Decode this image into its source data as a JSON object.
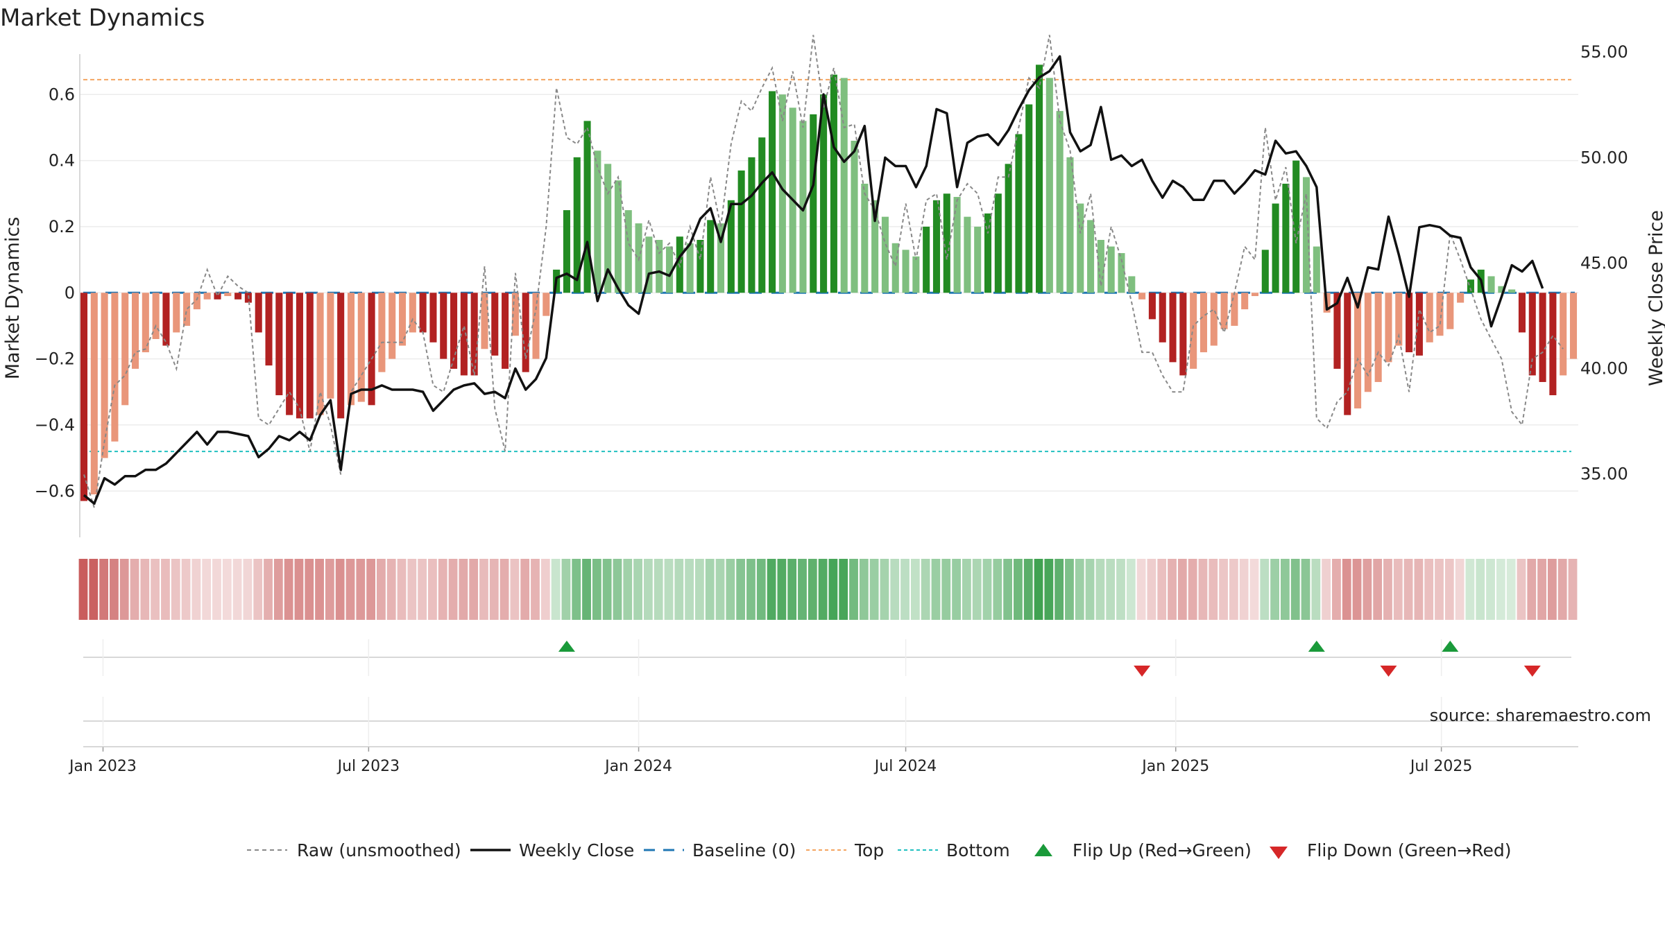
{
  "chart_data": {
    "type": "bar",
    "title": "Market Dynamics",
    "ylabel": "Market Dynamics",
    "y2label": "Weekly Close Price",
    "source": "source: sharemaestro.com",
    "ylim": [
      -0.74,
      0.76
    ],
    "y2lim": [
      32.0,
      55.5
    ],
    "yticks": [
      -0.6,
      -0.4,
      -0.2,
      0,
      0.2,
      0.4,
      0.6
    ],
    "yticklabels": [
      "−0.6",
      "−0.4",
      "−0.2",
      "0",
      "0.2",
      "0.4",
      "0.6"
    ],
    "y2ticks": [
      35,
      40,
      45,
      50,
      55
    ],
    "y2ticklabels": [
      "35.00",
      "40.00",
      "45.00",
      "50.00",
      "55.00"
    ],
    "xticks": [
      "2023-01-01",
      "2023-07-01",
      "2024-01-01",
      "2024-07-01",
      "2025-01-01",
      "2025-07-01"
    ],
    "xticklabels": [
      "Jan 2023",
      "Jul 2023",
      "Jan 2024",
      "Jul 2024",
      "Jan 2025",
      "Jul 2025"
    ],
    "start_date": "2022-12-19",
    "top_line": 0.645,
    "bottom_line": -0.48,
    "grid": true,
    "legend_position": "bottom",
    "colors": {
      "strong_red": "#b22222",
      "weak_red": "#e9967a",
      "strong_green": "#228b22",
      "weak_green": "#7fbf7f",
      "baseline": "#1f77b4",
      "top": "#f4a460",
      "bottom": "#20c0c0",
      "close": "#111111",
      "raw": "#888888",
      "flip_up": "#1a9a3a",
      "flip_down": "#d62728"
    },
    "series": [
      {
        "name": "Market Dynamics",
        "values": [
          -0.63,
          -0.61,
          -0.5,
          -0.45,
          -0.34,
          -0.23,
          -0.18,
          -0.14,
          -0.16,
          -0.12,
          -0.1,
          -0.05,
          -0.02,
          -0.02,
          -0.01,
          -0.02,
          -0.03,
          -0.12,
          -0.22,
          -0.31,
          -0.37,
          -0.38,
          -0.38,
          -0.37,
          -0.32,
          -0.38,
          -0.34,
          -0.33,
          -0.34,
          -0.24,
          -0.2,
          -0.16,
          -0.12,
          -0.12,
          -0.15,
          -0.2,
          -0.23,
          -0.25,
          -0.25,
          -0.17,
          -0.19,
          -0.23,
          -0.13,
          -0.24,
          -0.2,
          -0.07,
          0.07,
          0.25,
          0.41,
          0.52,
          0.43,
          0.39,
          0.34,
          0.25,
          0.21,
          0.17,
          0.16,
          0.14,
          0.17,
          0.15,
          0.16,
          0.22,
          0.21,
          0.28,
          0.37,
          0.41,
          0.47,
          0.61,
          0.6,
          0.56,
          0.52,
          0.54,
          0.6,
          0.66,
          0.65,
          0.46,
          0.33,
          0.28,
          0.23,
          0.15,
          0.13,
          0.11,
          0.2,
          0.28,
          0.3,
          0.29,
          0.23,
          0.2,
          0.24,
          0.3,
          0.39,
          0.48,
          0.57,
          0.69,
          0.65,
          0.55,
          0.41,
          0.27,
          0.22,
          0.16,
          0.14,
          0.12,
          0.05,
          -0.02,
          -0.08,
          -0.15,
          -0.21,
          -0.25,
          -0.23,
          -0.18,
          -0.16,
          -0.11,
          -0.1,
          -0.05,
          -0.01,
          0.13,
          0.27,
          0.33,
          0.4,
          0.35,
          0.14,
          -0.06,
          -0.23,
          -0.37,
          -0.35,
          -0.3,
          -0.27,
          -0.21,
          -0.16,
          -0.18,
          -0.19,
          -0.15,
          -0.13,
          -0.11,
          -0.03,
          0.04,
          0.07,
          0.05,
          0.02,
          0.01,
          -0.12,
          -0.25,
          -0.27,
          -0.31,
          -0.25,
          -0.2
        ]
      },
      {
        "name": "Weekly Close",
        "values": [
          34.0,
          33.6,
          34.8,
          34.5,
          34.9,
          34.9,
          35.2,
          35.2,
          35.5,
          36.0,
          36.5,
          37.0,
          36.4,
          37.0,
          37.0,
          36.9,
          36.8,
          35.8,
          36.2,
          36.8,
          36.6,
          37.0,
          36.6,
          37.8,
          38.5,
          35.2,
          38.8,
          39.0,
          39.0,
          39.2,
          39.0,
          39.0,
          39.0,
          38.9,
          38.0,
          38.5,
          39.0,
          39.2,
          39.3,
          38.8,
          38.9,
          38.6,
          40.0,
          39.0,
          39.5,
          40.5,
          44.3,
          44.5,
          44.2,
          46.0,
          43.2,
          44.7,
          43.8,
          43.0,
          42.6,
          44.5,
          44.6,
          44.4,
          45.3,
          45.9,
          47.1,
          47.6,
          46.0,
          47.8,
          47.8,
          48.2,
          48.8,
          49.3,
          48.5,
          48.0,
          47.5,
          48.7,
          53.0,
          50.5,
          49.8,
          50.3,
          51.5,
          47.0,
          50.0,
          49.6,
          49.6,
          48.6,
          49.6,
          52.3,
          52.1,
          48.6,
          50.7,
          51.0,
          51.1,
          50.6,
          51.3,
          52.3,
          53.2,
          53.8,
          54.1,
          54.8,
          51.2,
          50.3,
          50.6,
          52.4,
          49.9,
          50.1,
          49.6,
          49.9,
          48.9,
          48.1,
          48.9,
          48.6,
          48.0,
          48.0,
          48.9,
          48.9,
          48.3,
          48.8,
          49.4,
          49.2,
          50.8,
          50.2,
          50.3,
          49.6,
          48.6,
          42.8,
          43.1,
          44.3,
          42.9,
          44.8,
          44.7,
          47.2,
          45.4,
          43.4,
          46.7,
          46.8,
          46.7,
          46.3,
          46.2,
          44.8,
          44.2,
          42.0,
          43.4,
          44.9,
          44.6,
          45.1,
          43.8
        ]
      },
      {
        "name": "Raw (unsmoothed)",
        "values": [
          -0.55,
          -0.65,
          -0.45,
          -0.28,
          -0.25,
          -0.18,
          -0.17,
          -0.1,
          -0.15,
          -0.23,
          -0.05,
          -0.02,
          0.07,
          -0.01,
          0.05,
          0.02,
          0.0,
          -0.38,
          -0.4,
          -0.35,
          -0.3,
          -0.35,
          -0.48,
          -0.3,
          -0.4,
          -0.55,
          -0.3,
          -0.25,
          -0.2,
          -0.15,
          -0.15,
          -0.15,
          -0.08,
          -0.12,
          -0.28,
          -0.3,
          -0.2,
          -0.1,
          -0.25,
          0.08,
          -0.35,
          -0.48,
          0.06,
          -0.2,
          -0.05,
          0.2,
          0.62,
          0.47,
          0.45,
          0.5,
          0.38,
          0.3,
          0.35,
          0.15,
          0.1,
          0.22,
          0.12,
          0.15,
          0.08,
          0.2,
          0.1,
          0.35,
          0.2,
          0.45,
          0.58,
          0.55,
          0.62,
          0.68,
          0.52,
          0.67,
          0.5,
          0.78,
          0.56,
          0.68,
          0.5,
          0.51,
          0.3,
          0.25,
          0.15,
          0.08,
          0.27,
          0.1,
          0.28,
          0.3,
          0.1,
          0.28,
          0.33,
          0.3,
          0.18,
          0.35,
          0.35,
          0.5,
          0.65,
          0.62,
          0.78,
          0.52,
          0.43,
          0.18,
          0.3,
          0.02,
          0.2,
          0.1,
          -0.03,
          -0.18,
          -0.18,
          -0.25,
          -0.3,
          -0.3,
          -0.1,
          -0.07,
          -0.05,
          -0.12,
          0.0,
          0.14,
          0.1,
          0.5,
          0.28,
          0.38,
          0.15,
          0.3,
          -0.38,
          -0.41,
          -0.33,
          -0.3,
          -0.2,
          -0.25,
          -0.18,
          -0.22,
          -0.13,
          -0.3,
          -0.05,
          -0.12,
          -0.1,
          0.18,
          0.1,
          0.01,
          -0.08,
          -0.14,
          -0.2,
          -0.36,
          -0.4,
          -0.2,
          -0.18,
          -0.13,
          -0.17
        ]
      }
    ],
    "flip_up": [
      "2023-11-13",
      "2025-04-07",
      "2025-07-07"
    ],
    "flip_down": [
      "2024-12-09",
      "2025-05-26",
      "2025-09-01"
    ],
    "legend": [
      "Raw (unsmoothed)",
      "Weekly Close",
      "Baseline (0)",
      "Top",
      "Bottom",
      "Flip Up (Red→Green)",
      "Flip Down (Green→Red)"
    ]
  }
}
